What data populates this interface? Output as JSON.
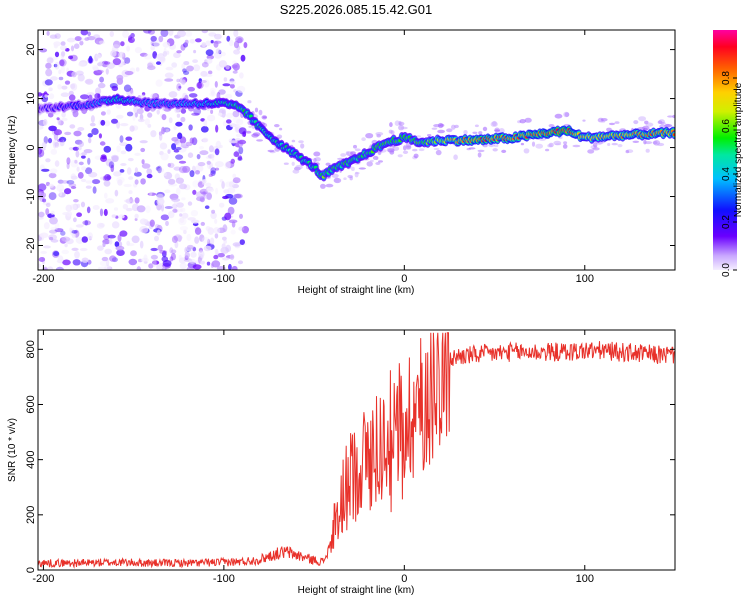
{
  "chart_data": [
    {
      "type": "heatmap",
      "title": "S225.2026.085.15.42.G01",
      "xlabel": "Height of straight line (km)",
      "ylabel": "Frequency (Hz)",
      "xlim": [
        -203,
        150
      ],
      "ylim": [
        -25,
        24
      ],
      "xticks": [
        -200,
        -100,
        0,
        100
      ],
      "xtick_labels": [
        "-200",
        "-100",
        "0",
        "100"
      ],
      "yticks": [
        -20,
        -10,
        0,
        10,
        20
      ],
      "ytick_labels": [
        "-20",
        "-10",
        "0",
        "10",
        "20"
      ],
      "colorbar": {
        "label": "Normalized spectral amplitude",
        "range": [
          0,
          1
        ],
        "ticks": [
          0.0,
          0.2,
          0.4,
          0.6,
          0.8
        ],
        "tick_labels": [
          "0.0",
          "0.2",
          "0.4",
          "0.6",
          "0.8"
        ]
      },
      "ridge": {
        "x": [
          -200,
          -170,
          -160,
          -140,
          -120,
          -100,
          -90,
          -80,
          -70,
          -60,
          -50,
          -45,
          -40,
          -30,
          -20,
          -10,
          0,
          10,
          20,
          40,
          60,
          80,
          90,
          100,
          120,
          150
        ],
        "frequency": [
          8,
          9,
          10,
          9,
          9,
          9,
          8,
          4,
          1,
          -1.5,
          -4,
          -6,
          -4.5,
          -3,
          -1,
          1,
          2,
          1,
          1.5,
          1.5,
          2,
          3,
          3.5,
          2,
          2.5,
          3
        ],
        "amplitude": [
          0.2,
          0.35,
          0.5,
          0.35,
          0.4,
          0.5,
          0.55,
          0.5,
          0.5,
          0.5,
          0.5,
          0.6,
          0.55,
          0.55,
          0.55,
          0.6,
          0.6,
          0.6,
          0.7,
          0.9,
          0.85,
          0.9,
          0.95,
          0.75,
          0.8,
          0.85
        ]
      }
    },
    {
      "type": "line",
      "xlabel": "Height of straight line (km)",
      "ylabel": "SNR (10 * v/v)",
      "xlim": [
        -203,
        150
      ],
      "ylim": [
        0,
        870
      ],
      "xticks": [
        -200,
        -100,
        0,
        100
      ],
      "xtick_labels": [
        "-200",
        "-100",
        "0",
        "100"
      ],
      "yticks": [
        0,
        200,
        400,
        600,
        800
      ],
      "ytick_labels": [
        "0",
        "200",
        "400",
        "600",
        "800"
      ],
      "color": "#e8312a",
      "series": [
        {
          "name": "SNR",
          "x": [
            -203,
            -180,
            -160,
            -140,
            -120,
            -100,
            -90,
            -80,
            -75,
            -70,
            -65,
            -60,
            -55,
            -50,
            -45,
            -40,
            -35,
            -30,
            -25,
            -20,
            -15,
            -10,
            -5,
            0,
            5,
            10,
            15,
            20,
            25,
            30,
            40,
            50,
            60,
            70,
            80,
            90,
            100,
            110,
            120,
            130,
            140,
            150
          ],
          "y": [
            25,
            25,
            28,
            25,
            25,
            28,
            30,
            38,
            50,
            60,
            65,
            55,
            45,
            35,
            30,
            100,
            250,
            330,
            380,
            420,
            450,
            470,
            520,
            540,
            580,
            600,
            680,
            730,
            760,
            775,
            780,
            785,
            790,
            790,
            790,
            790,
            795,
            795,
            790,
            785,
            780,
            780
          ]
        }
      ]
    }
  ]
}
